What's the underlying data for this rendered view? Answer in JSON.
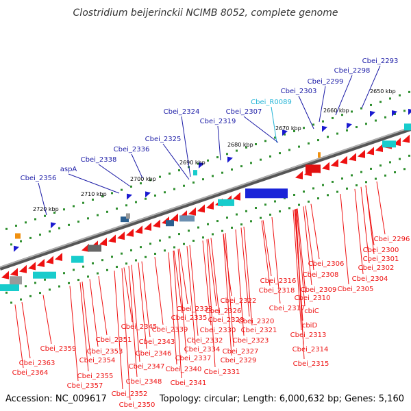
{
  "title": "Clostridium beijerinckii NCIMB 8052, complete genome",
  "footer": {
    "accession": "Accession: NC_009617",
    "topology": "Topology: circular; Length: 6,000,632 bp; Genes: 5,160"
  },
  "colors": {
    "forward_label": "#1a1aa6",
    "rna_label": "#22b4d6",
    "reverse_label": "#ee1111",
    "backbone": "#8a8a8a",
    "tick_dots": "#2f8f2f"
  },
  "ticks": [
    "2650 kbp",
    "2660 kbp",
    "2670 kbp",
    "2680 kbp",
    "2690 kbp",
    "2700 kbp",
    "2710 kbp",
    "2720 kbp"
  ],
  "forward_labels": [
    "Cbei_2293",
    "Cbei_2298",
    "Cbei_2299",
    "Cbei_2303",
    "Cbei_R0089",
    "Cbei_2307",
    "Cbei_2319",
    "Cbei_2324",
    "Cbei_2325",
    "Cbei_2336",
    "Cbei_2338",
    "aspA",
    "Cbei_2356"
  ],
  "reverse_labels": [
    "Cbei_2296",
    "Cbei_2300",
    "Cbei_2301",
    "Cbei_2302",
    "Cbei_2304",
    "Cbei_2305",
    "Cbei_2306",
    "Cbei_2308",
    "Cbei_2309",
    "Cbei_2310",
    "cbiC",
    "cbiD",
    "Cbei_2313",
    "Cbei_2314",
    "Cbei_2315",
    "Cbei_2316",
    "Cbei_2318",
    "Cbei_2317",
    "Cbei_2320",
    "Cbei_2321",
    "Cbei_2322",
    "Cbei_2323",
    "Cbei_2326",
    "Cbei_2327",
    "Cbei_2328",
    "Cbei_2329",
    "Cbei_2330",
    "Cbei_2331",
    "Cbei_2332",
    "Cbei_2333",
    "Cbei_2334",
    "Cbei_2335",
    "Cbei_2337",
    "Cbei_2339",
    "Cbei_2340",
    "Cbei_2341",
    "Cbei_2343",
    "Cbei_2345",
    "Cbei_2346",
    "Cbei_2347",
    "Cbei_2348",
    "Cbei_2350",
    "Cbei_2351",
    "Cbei_2352",
    "Cbei_2353",
    "Cbei_2354",
    "Cbei_2355",
    "Cbei_2357",
    "Cbei_2359",
    "Cbei_2363",
    "Cbei_2364"
  ]
}
